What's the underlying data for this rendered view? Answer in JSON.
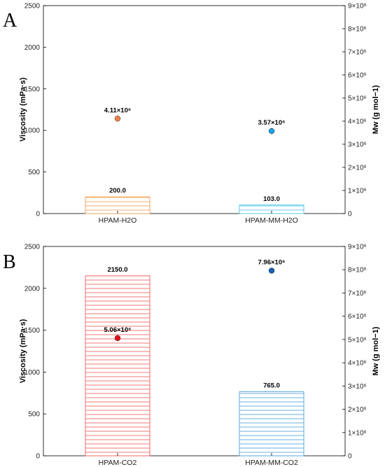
{
  "chart_data": [
    {
      "type": "bar",
      "panel": "A",
      "categories": [
        "HPAM-H2O",
        "HPAM-MM-H2O"
      ],
      "values": [
        200.0,
        103.0
      ],
      "value_labels": [
        "200.0",
        "103.0"
      ],
      "ylabel": "Viscosity (mPa·s)",
      "ylim": [
        0,
        2500
      ],
      "yticks": [
        "0",
        "500",
        "1000",
        "1500",
        "2000",
        "2500"
      ],
      "bar_colors": [
        "#f4a460",
        "#5bc8e8"
      ],
      "y2label": "Mw (g mol−1)",
      "y2lim": [
        0,
        9000000
      ],
      "y2ticks": [
        "0",
        "1×10⁶",
        "2×10⁶",
        "3×10⁶",
        "4×10⁶",
        "5×10⁶",
        "6×10⁶",
        "7×10⁶",
        "8×10⁶",
        "9×10⁶"
      ],
      "points": [
        4110000,
        3570000
      ],
      "point_labels": [
        "4.11×10⁶",
        "3.57×10⁶"
      ],
      "point_colors": [
        "#e8824a",
        "#1aa3e0"
      ]
    },
    {
      "type": "bar",
      "panel": "B",
      "categories": [
        "HPAM-CO2",
        "HPAM-MM-CO2"
      ],
      "values": [
        2150.0,
        765.0
      ],
      "value_labels": [
        "2150.0",
        "765.0"
      ],
      "ylabel": "Viscosity (mPa·s)",
      "ylim": [
        0,
        2500
      ],
      "yticks": [
        "0",
        "500",
        "1000",
        "1500",
        "2000",
        "2500"
      ],
      "bar_colors": [
        "#f06a6a",
        "#5aa8e0"
      ],
      "y2label": "Mw (g mol−1)",
      "y2lim": [
        0,
        9000000
      ],
      "y2ticks": [
        "0",
        "1×10⁶",
        "2×10⁶",
        "3×10⁶",
        "4×10⁶",
        "5×10⁶",
        "6×10⁶",
        "7×10⁶",
        "8×10⁶",
        "9×10⁶"
      ],
      "points": [
        5060000,
        7960000
      ],
      "point_labels": [
        "5.06×10⁶",
        "7.96×10⁶"
      ],
      "point_colors": [
        "#e0101a",
        "#1560b0"
      ]
    }
  ]
}
